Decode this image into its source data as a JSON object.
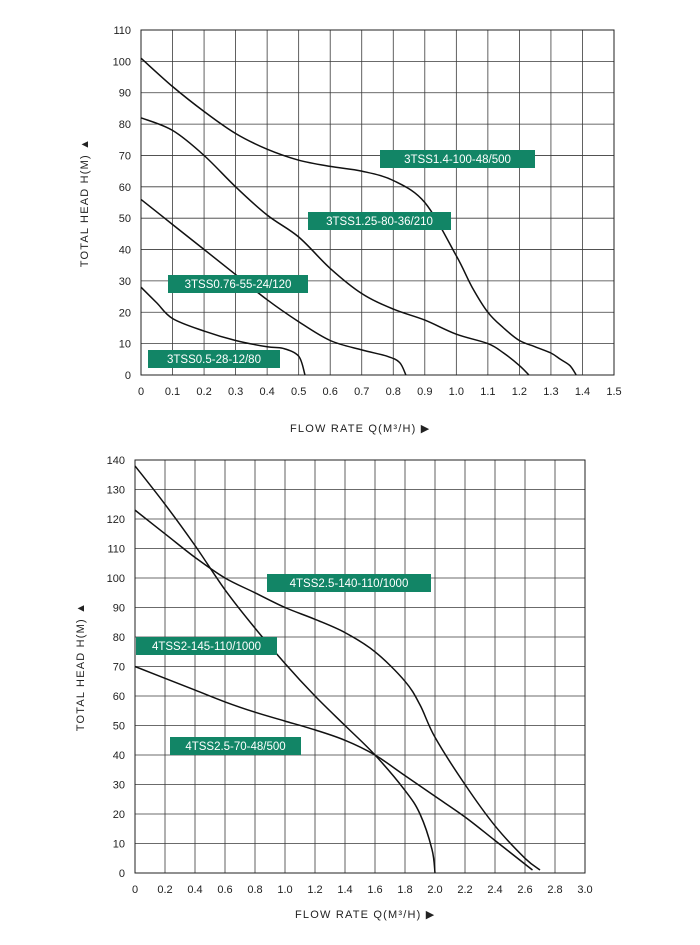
{
  "chart_data": [
    {
      "type": "line",
      "title": "",
      "xlabel": "FLOW RATE Q(M³/H)",
      "ylabel": "TOTAL HEAD H(M)",
      "xlim": [
        0,
        1.5
      ],
      "ylim": [
        0,
        110
      ],
      "xticks": [
        "0",
        "0.1",
        "0.2",
        "0.3",
        "0.4",
        "0.5",
        "0.6",
        "0.7",
        "0.8",
        "0.9",
        "1.0",
        "1.1",
        "1.2",
        "1.3",
        "1.4",
        "1.5"
      ],
      "yticks": [
        "0",
        "10",
        "20",
        "30",
        "40",
        "50",
        "60",
        "70",
        "80",
        "90",
        "100",
        "110"
      ],
      "grid": true,
      "line_color": "#111111",
      "label_color": "#128566",
      "series": [
        {
          "name": "3TSS1.4-100-48/500",
          "x": [
            0,
            0.1,
            0.2,
            0.3,
            0.4,
            0.5,
            0.6,
            0.7,
            0.8,
            0.9,
            1.0,
            1.05,
            1.1,
            1.15,
            1.2,
            1.25,
            1.3,
            1.33,
            1.36,
            1.38
          ],
          "y": [
            101,
            92,
            84,
            77,
            72,
            68.5,
            66.5,
            65,
            62,
            55,
            38,
            28,
            20,
            15,
            11,
            9,
            7,
            5,
            3,
            0
          ]
        },
        {
          "name": "3TSS1.25-80-36/210",
          "x": [
            0,
            0.1,
            0.2,
            0.3,
            0.4,
            0.5,
            0.6,
            0.7,
            0.8,
            0.9,
            1.0,
            1.1,
            1.15,
            1.2,
            1.23
          ],
          "y": [
            82,
            78,
            70,
            60,
            51,
            44,
            34,
            26,
            21,
            17.5,
            13,
            10,
            7,
            3,
            0
          ]
        },
        {
          "name": "3TSS0.76-55-24/120",
          "x": [
            0,
            0.1,
            0.2,
            0.3,
            0.4,
            0.5,
            0.6,
            0.7,
            0.78,
            0.82,
            0.84
          ],
          "y": [
            56,
            48,
            40,
            32,
            24,
            17,
            11,
            8,
            6,
            4,
            0
          ]
        },
        {
          "name": "3TSS0.5-28-12/80",
          "x": [
            0,
            0.05,
            0.1,
            0.2,
            0.3,
            0.4,
            0.45,
            0.5,
            0.52
          ],
          "y": [
            28,
            23,
            18,
            14,
            11,
            9,
            8.5,
            6,
            0
          ]
        }
      ]
    },
    {
      "type": "line",
      "title": "",
      "xlabel": "FLOW RATE Q(M³/H)",
      "ylabel": "TOTAL HEAD H(M)",
      "xlim": [
        0,
        3.0
      ],
      "ylim": [
        0,
        140
      ],
      "xticks": [
        "0",
        "0.2",
        "0.4",
        "0.6",
        "0.8",
        "1.0",
        "1.2",
        "1.4",
        "1.6",
        "1.8",
        "2.0",
        "2.2",
        "2.4",
        "2.6",
        "2.8",
        "3.0"
      ],
      "yticks": [
        "0",
        "10",
        "20",
        "30",
        "40",
        "50",
        "60",
        "70",
        "80",
        "90",
        "100",
        "110",
        "120",
        "130",
        "140"
      ],
      "grid": true,
      "line_color": "#111111",
      "label_color": "#128566",
      "series": [
        {
          "name": "4TSS2.5-140-110/1000",
          "x": [
            0,
            0.2,
            0.4,
            0.6,
            0.8,
            1.0,
            1.2,
            1.4,
            1.6,
            1.8,
            1.9,
            2.0,
            2.2,
            2.4,
            2.6,
            2.7
          ],
          "y": [
            123,
            115,
            107,
            100,
            95,
            90,
            86,
            81.5,
            75,
            65,
            57,
            46,
            30,
            16,
            5,
            1
          ]
        },
        {
          "name": "4TSS2-145-110/1000",
          "x": [
            0,
            0.2,
            0.4,
            0.6,
            0.8,
            1.0,
            1.2,
            1.4,
            1.6,
            1.8,
            1.9,
            1.98,
            2.0
          ],
          "y": [
            138,
            125,
            111,
            96,
            83,
            71,
            60,
            50,
            40,
            28,
            20,
            8,
            0
          ]
        },
        {
          "name": "4TSS2.5-70-48/500",
          "x": [
            0,
            0.2,
            0.4,
            0.6,
            0.8,
            1.0,
            1.2,
            1.4,
            1.6,
            1.8,
            2.0,
            2.2,
            2.4,
            2.6,
            2.65
          ],
          "y": [
            70,
            66,
            62,
            58,
            54.5,
            51.5,
            48.5,
            45,
            40,
            33,
            26,
            19,
            11,
            3,
            1
          ]
        }
      ]
    }
  ]
}
